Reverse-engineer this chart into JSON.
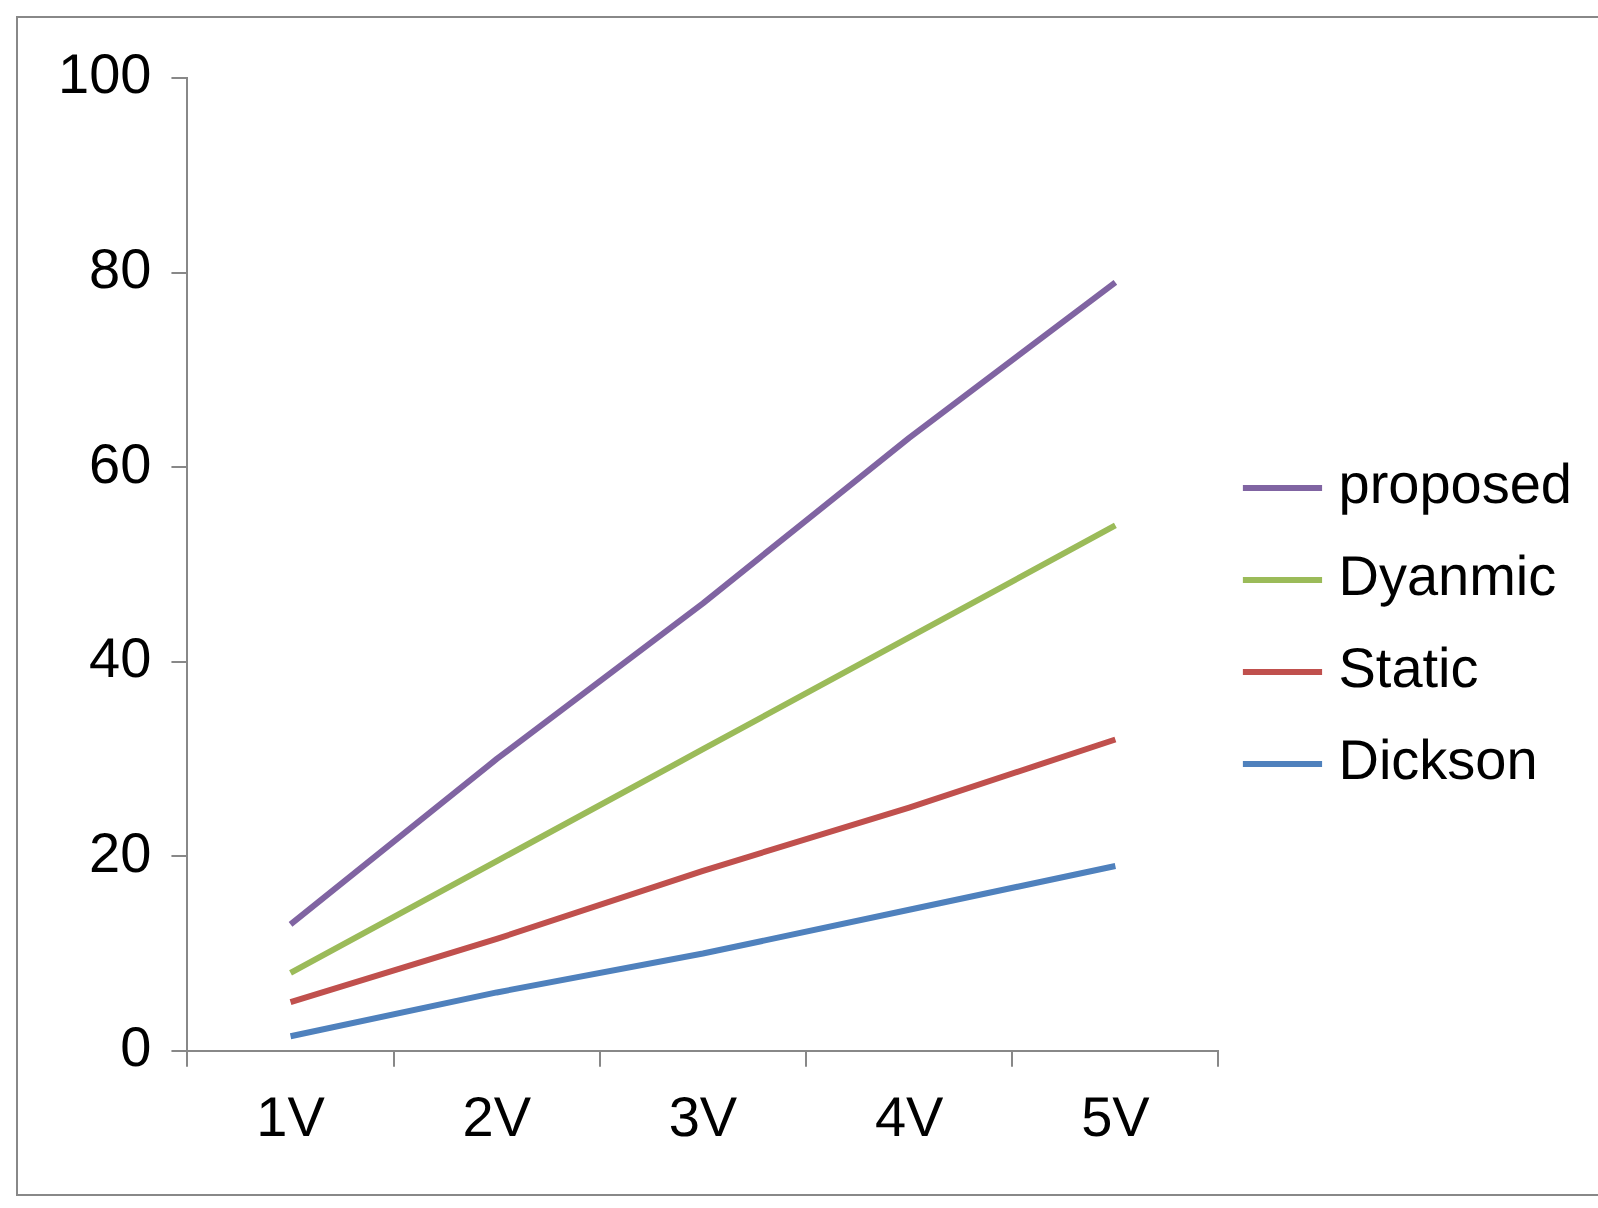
{
  "chart_data": {
    "type": "line",
    "categories": [
      "1V",
      "2V",
      "3V",
      "4V",
      "5V"
    ],
    "series": [
      {
        "name": "Dickson",
        "color": "#4f81bd",
        "values": [
          1.5,
          6,
          10,
          14.5,
          19
        ]
      },
      {
        "name": "Static",
        "color": "#c0504d",
        "values": [
          5,
          11.5,
          18.5,
          25,
          32
        ]
      },
      {
        "name": "Dyanmic",
        "color": "#9bbb59",
        "values": [
          8,
          19.5,
          31,
          42.5,
          54
        ]
      },
      {
        "name": "proposed",
        "color": "#8064a2",
        "values": [
          13,
          30,
          46,
          63,
          79
        ]
      }
    ],
    "ylim": [
      0,
      100
    ],
    "yticks": [
      0,
      20,
      40,
      60,
      80,
      100
    ],
    "grid": false,
    "legend": "right",
    "marker": "none",
    "line_style": "solid"
  }
}
